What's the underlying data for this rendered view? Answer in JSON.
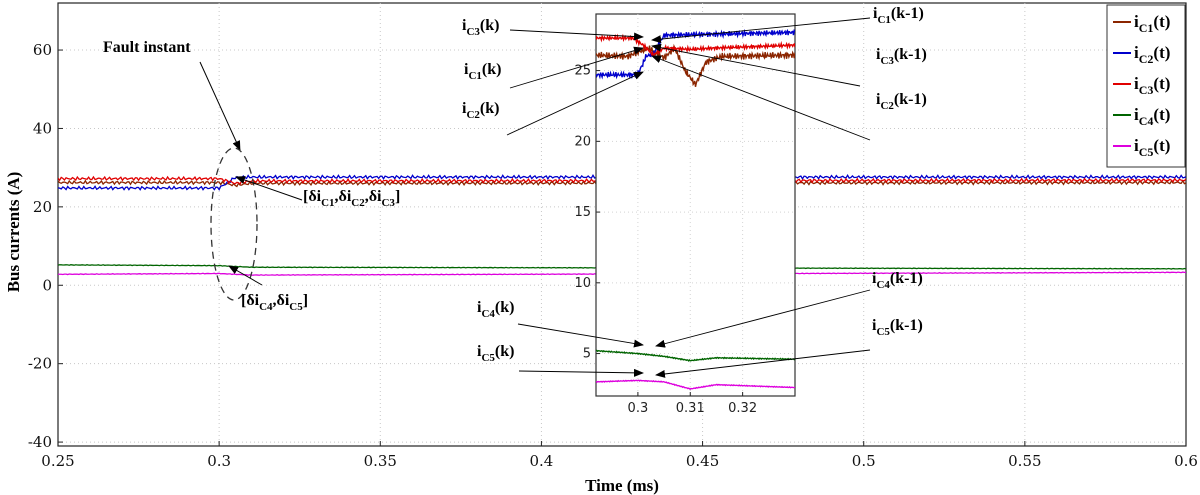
{
  "chart_data": {
    "type": "line",
    "xlabel": "Time (ms)",
    "ylabel": "Bus currents (A)",
    "xlim": [
      0.25,
      0.6
    ],
    "ylim": [
      -41,
      72
    ],
    "x_ticks": [
      "0.25",
      "0.3",
      "0.35",
      "0.4",
      "0.45",
      "0.5",
      "0.55",
      "0.6"
    ],
    "y_ticks": [
      "-40",
      "-20",
      "0",
      "20",
      "40",
      "60"
    ],
    "grid": true,
    "legend": {
      "position": "top-right",
      "entries": [
        {
          "label": "iC1(t)",
          "base": "i",
          "sub": "C1",
          "suffix": "(t)",
          "color": "#8B2500"
        },
        {
          "label": "iC2(t)",
          "base": "i",
          "sub": "C2",
          "suffix": "(t)",
          "color": "#0000CC"
        },
        {
          "label": "iC3(t)",
          "base": "i",
          "sub": "C3",
          "suffix": "(t)",
          "color": "#E00000"
        },
        {
          "label": "iC4(t)",
          "base": "i",
          "sub": "C4",
          "suffix": "(t)",
          "color": "#006400"
        },
        {
          "label": "iC5(t)",
          "base": "i",
          "sub": "C5",
          "suffix": "(t)",
          "color": "#DD00DD"
        }
      ]
    },
    "series": [
      {
        "name": "iC1(t)",
        "color": "#8B2500",
        "x": [
          0.25,
          0.3,
          0.305,
          0.31,
          0.6
        ],
        "y": [
          26.2,
          26.2,
          25.5,
          26.0,
          26.2
        ]
      },
      {
        "name": "iC2(t)",
        "color": "#0000CC",
        "x": [
          0.25,
          0.3,
          0.305,
          0.31,
          0.6
        ],
        "y": [
          24.8,
          24.8,
          27.5,
          27.6,
          27.6
        ]
      },
      {
        "name": "iC3(t)",
        "color": "#E00000",
        "x": [
          0.25,
          0.3,
          0.305,
          0.31,
          0.6
        ],
        "y": [
          27.2,
          27.2,
          26.0,
          26.6,
          26.8
        ]
      },
      {
        "name": "iC4(t)",
        "color": "#006400",
        "x": [
          0.25,
          0.3,
          0.31,
          0.6
        ],
        "y": [
          5.2,
          5.0,
          4.6,
          4.2
        ]
      },
      {
        "name": "iC5(t)",
        "color": "#DD00DD",
        "x": [
          0.25,
          0.3,
          0.31,
          0.6
        ],
        "y": [
          2.8,
          3.0,
          2.6,
          3.3
        ]
      }
    ],
    "inset": {
      "xlim": [
        0.292,
        0.33
      ],
      "ylim": [
        2,
        29
      ],
      "x_ticks": [
        "0.3",
        "0.31",
        "0.32"
      ],
      "y_ticks": [
        "5",
        "10",
        "15",
        "20",
        "25"
      ]
    },
    "annotations": {
      "fault_instant": "Fault instant",
      "delta_123": "[δiC1,δiC2,δiC3]",
      "delta_45": "[δiC4,δiC5]",
      "ic3k": "iC3(k)",
      "ic1k": "iC1(k)",
      "ic2k": "iC2(k)",
      "ic1km1": "iC1(k-1)",
      "ic3km1": "iC3(k-1)",
      "ic2km1": "iC2(k-1)",
      "ic4k": "iC4(k)",
      "ic5k": "iC5(k)",
      "ic4km1": "iC4(k-1)",
      "ic5km1": "iC5(k-1)"
    }
  }
}
